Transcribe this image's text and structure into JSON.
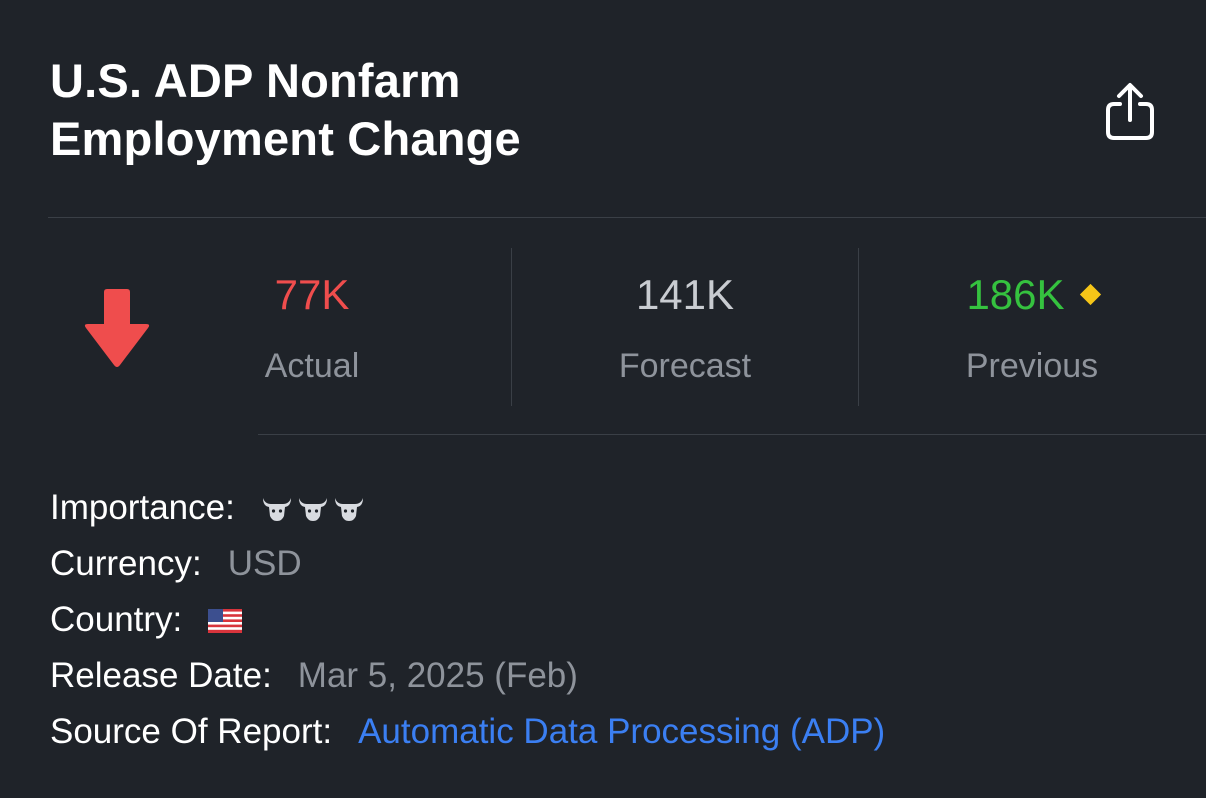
{
  "header": {
    "title": "U.S. ADP Nonfarm Employment Change",
    "share_icon": "share-icon"
  },
  "summary": {
    "trend_icon": "arrow-down-icon",
    "trend_color": "#ef4d4d",
    "actual": {
      "value": "77K",
      "label": "Actual",
      "color": "#ef4d4d"
    },
    "forecast": {
      "value": "141K",
      "label": "Forecast",
      "color": "#c9ccd1"
    },
    "previous": {
      "value": "186K",
      "label": "Previous",
      "color": "#35c23f",
      "badge_icon": "diamond-icon",
      "badge_color": "#f5c518"
    }
  },
  "details": {
    "importance": {
      "label": "Importance:",
      "level": 3,
      "max": 3,
      "icon": "bull-icon"
    },
    "currency": {
      "label": "Currency:",
      "value": "USD"
    },
    "country": {
      "label": "Country:",
      "icon": "us-flag-icon"
    },
    "release_date": {
      "label": "Release Date:",
      "value": "Mar 5, 2025 (Feb)"
    },
    "source": {
      "label": "Source Of Report:",
      "value": "Automatic Data Processing (ADP)",
      "color": "#3b7ff2"
    }
  }
}
